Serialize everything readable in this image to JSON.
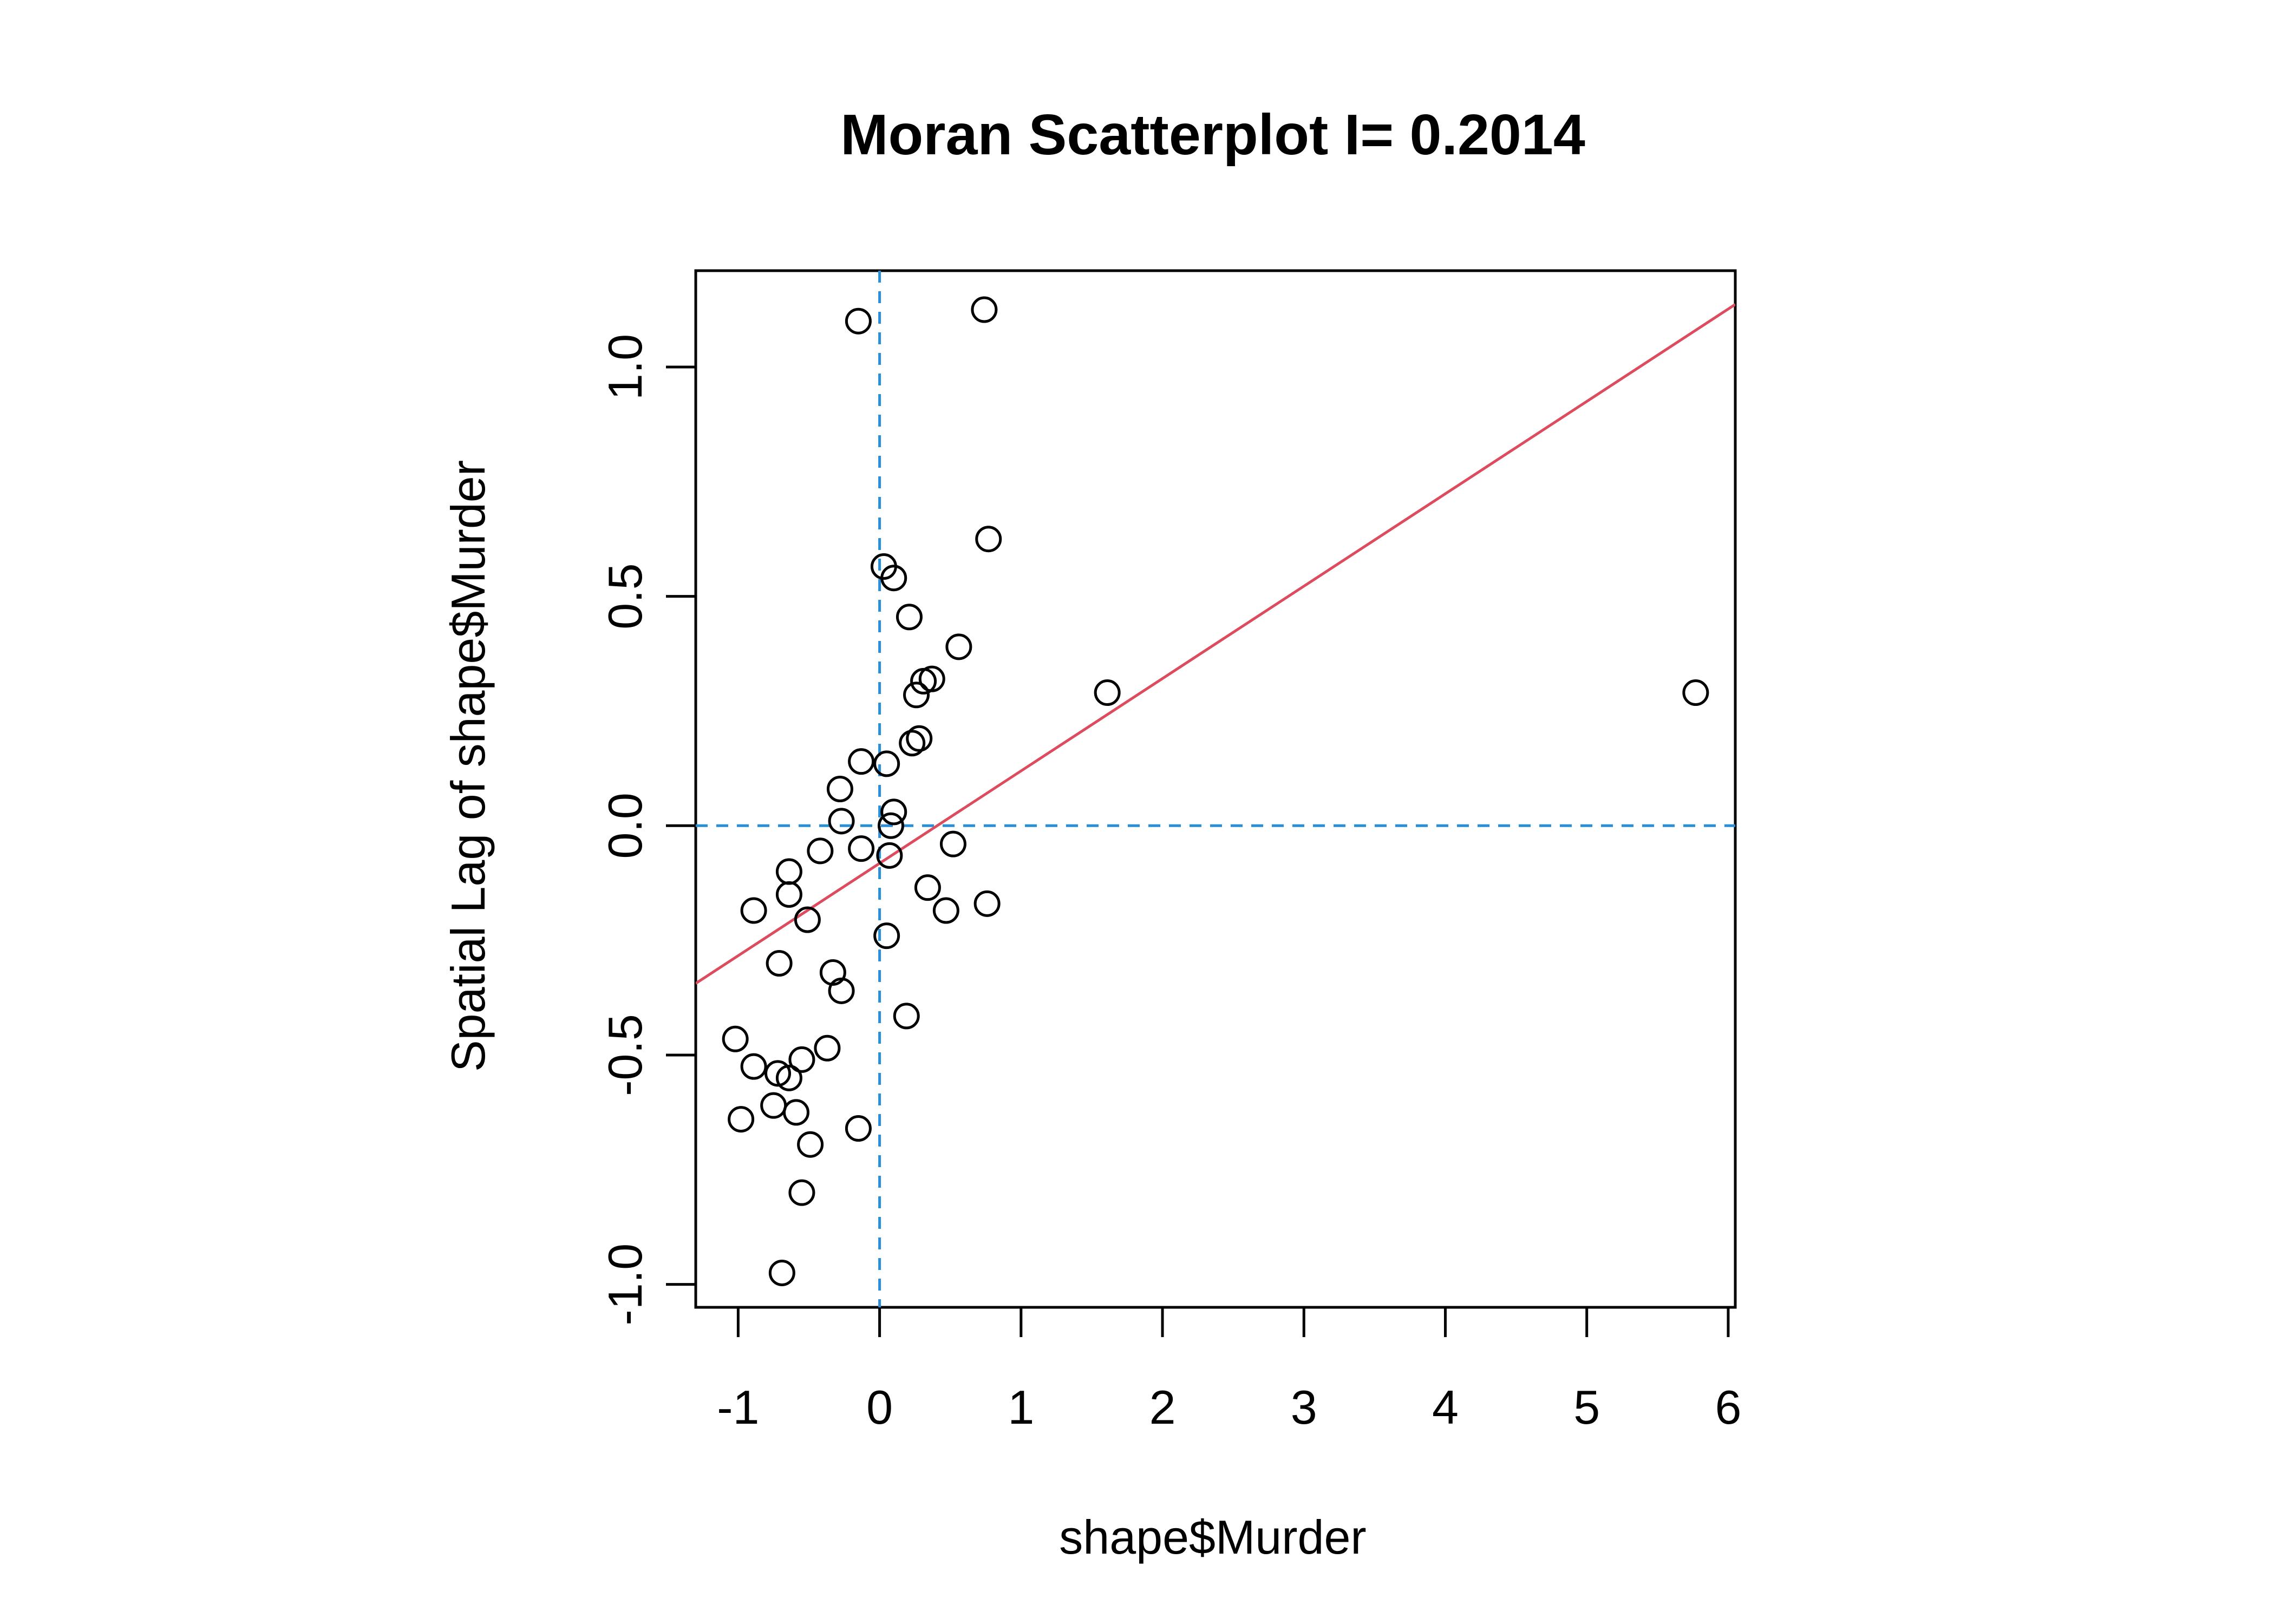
{
  "chart_data": {
    "type": "scatter",
    "title": "Moran Scatterplot I=  0.2014",
    "xlabel": "shape$Murder",
    "ylabel": "Spatial Lag of  shape$Murder",
    "xlim": [
      -1.3,
      6.05
    ],
    "ylim": [
      -1.05,
      1.21
    ],
    "x_ticks": [
      -1,
      0,
      1,
      2,
      3,
      4,
      5,
      6
    ],
    "x_tick_labels": [
      "-1",
      "0",
      "1",
      "2",
      "3",
      "4",
      "5",
      "6"
    ],
    "y_ticks": [
      -1.0,
      -0.5,
      0.0,
      0.5,
      1.0
    ],
    "y_tick_labels": [
      "-1.0",
      "-0.5",
      "0.0",
      "0.5",
      "1.0"
    ],
    "grid": false,
    "reference_lines": {
      "x": 0,
      "y": 0,
      "style": "dashed",
      "color": "#2b8fd8"
    },
    "regression_line": {
      "slope": 0.2014,
      "intercept": -0.082,
      "color": "#dc4b5e"
    },
    "point_style": {
      "shape": "open-circle",
      "color": "#000000"
    },
    "points": [
      {
        "x": -0.15,
        "y": 1.1
      },
      {
        "x": 0.74,
        "y": 1.125
      },
      {
        "x": 0.77,
        "y": 0.625
      },
      {
        "x": 0.03,
        "y": 0.565
      },
      {
        "x": 0.1,
        "y": 0.54
      },
      {
        "x": 0.21,
        "y": 0.455
      },
      {
        "x": 0.56,
        "y": 0.39
      },
      {
        "x": 0.31,
        "y": 0.315
      },
      {
        "x": 0.37,
        "y": 0.32
      },
      {
        "x": 0.26,
        "y": 0.285
      },
      {
        "x": 1.61,
        "y": 0.29
      },
      {
        "x": 5.77,
        "y": 0.29
      },
      {
        "x": 0.28,
        "y": 0.19
      },
      {
        "x": 0.23,
        "y": 0.18
      },
      {
        "x": -0.13,
        "y": 0.14
      },
      {
        "x": 0.05,
        "y": 0.135
      },
      {
        "x": -0.28,
        "y": 0.08
      },
      {
        "x": 0.1,
        "y": 0.03
      },
      {
        "x": -0.27,
        "y": 0.01
      },
      {
        "x": 0.08,
        "y": 0.0
      },
      {
        "x": -0.13,
        "y": -0.05
      },
      {
        "x": -0.42,
        "y": -0.055
      },
      {
        "x": 0.07,
        "y": -0.065
      },
      {
        "x": 0.52,
        "y": -0.04
      },
      {
        "x": -0.64,
        "y": -0.1
      },
      {
        "x": 0.34,
        "y": -0.135
      },
      {
        "x": -0.64,
        "y": -0.15
      },
      {
        "x": 0.76,
        "y": -0.17
      },
      {
        "x": 0.47,
        "y": -0.185
      },
      {
        "x": -0.89,
        "y": -0.185
      },
      {
        "x": -0.51,
        "y": -0.205
      },
      {
        "x": 0.05,
        "y": -0.24
      },
      {
        "x": -0.71,
        "y": -0.3
      },
      {
        "x": -0.33,
        "y": -0.32
      },
      {
        "x": -0.27,
        "y": -0.36
      },
      {
        "x": 0.19,
        "y": -0.415
      },
      {
        "x": -1.02,
        "y": -0.465
      },
      {
        "x": -0.37,
        "y": -0.485
      },
      {
        "x": -0.55,
        "y": -0.51
      },
      {
        "x": -0.89,
        "y": -0.525
      },
      {
        "x": -0.72,
        "y": -0.54
      },
      {
        "x": -0.64,
        "y": -0.55
      },
      {
        "x": -0.75,
        "y": -0.61
      },
      {
        "x": -0.59,
        "y": -0.625
      },
      {
        "x": -0.98,
        "y": -0.64
      },
      {
        "x": -0.15,
        "y": -0.66
      },
      {
        "x": -0.49,
        "y": -0.695
      },
      {
        "x": -0.55,
        "y": -0.8
      },
      {
        "x": -0.69,
        "y": -0.975
      }
    ]
  }
}
